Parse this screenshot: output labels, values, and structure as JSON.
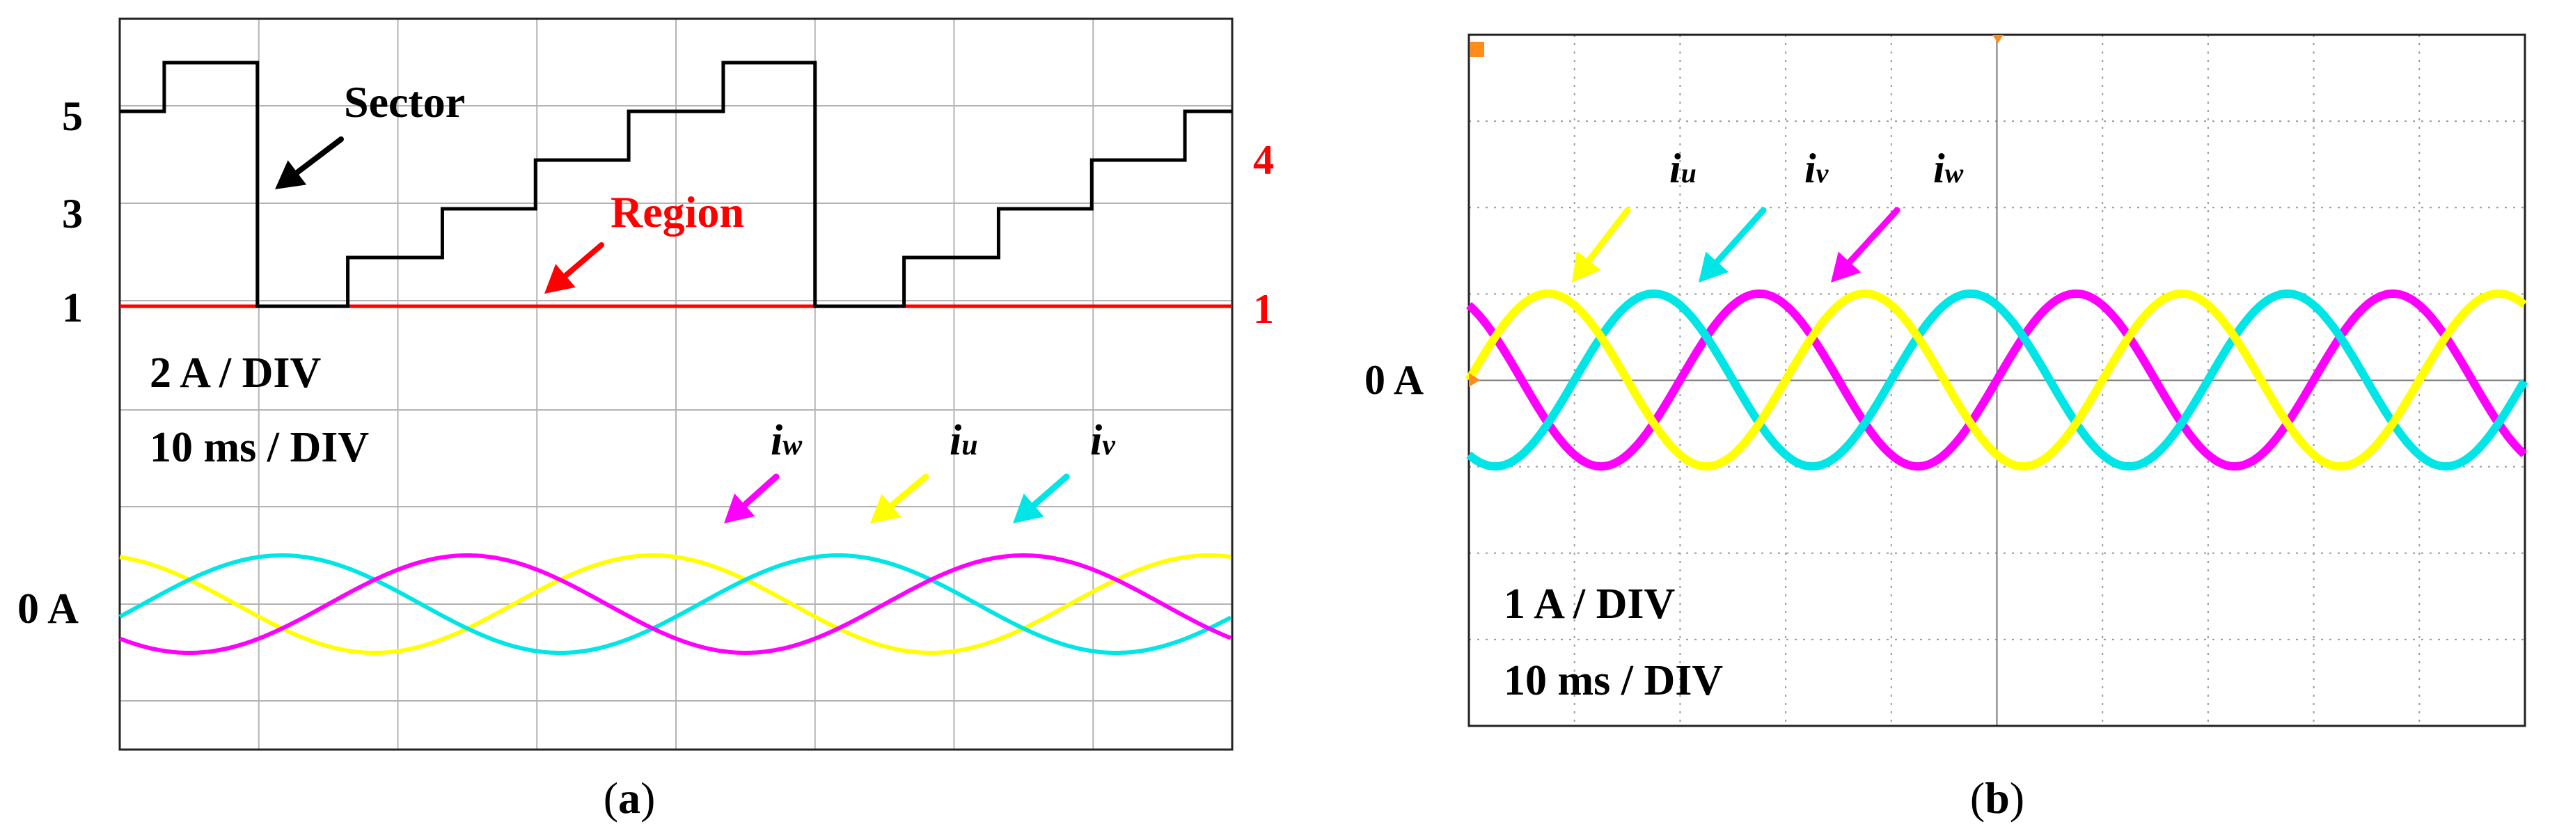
{
  "colors": {
    "sector": "#000000",
    "region": "#ff0000",
    "iu": "#ffff00",
    "iv": "#00e5e5",
    "iw": "#ff00ff",
    "grid": "#b4b4b4",
    "frame": "#222222",
    "scope_grid": "#9a9a9a"
  },
  "chart_data": [
    {
      "type": "line",
      "panel": "a",
      "caption": "(a)",
      "caption_letter": "a",
      "ytick_labels_left": [
        "5",
        "3",
        "1"
      ],
      "ytick_labels_right": [
        "4",
        "1"
      ],
      "settings": [
        "2 A / DIV",
        "10 ms / DIV"
      ],
      "zero_label": "0 A",
      "annotations": {
        "sector": "Sector",
        "region": "Region"
      },
      "current_labels": [
        {
          "key": "iw",
          "base": "i",
          "sub": "w"
        },
        {
          "key": "iu",
          "base": "i",
          "sub": "u"
        },
        {
          "key": "iv",
          "base": "i",
          "sub": "v"
        }
      ],
      "time_divisions": 8,
      "sector_levels": [
        1,
        2,
        3,
        4,
        5,
        6
      ],
      "sector_steps": [
        {
          "t": 0.0,
          "v": 5
        },
        {
          "t": 0.32,
          "v": 6
        },
        {
          "t": 0.99,
          "v": 1
        },
        {
          "t": 1.64,
          "v": 2
        },
        {
          "t": 2.32,
          "v": 3
        },
        {
          "t": 2.99,
          "v": 4
        },
        {
          "t": 3.66,
          "v": 5
        },
        {
          "t": 4.34,
          "v": 6
        },
        {
          "t": 5.0,
          "v": 1
        },
        {
          "t": 5.64,
          "v": 2
        },
        {
          "t": 6.32,
          "v": 3
        },
        {
          "t": 6.99,
          "v": 4
        },
        {
          "t": 7.66,
          "v": 5
        },
        {
          "t": 8.0,
          "v": 5
        }
      ],
      "region_value": 1,
      "current": {
        "amplitude_A": 1.0,
        "amplitude_div": 0.5,
        "period_div": 4.0,
        "phase_deg": {
          "iu": 105,
          "iv": -15,
          "iw": 225
        }
      }
    },
    {
      "type": "line",
      "panel": "b",
      "caption": "(b)",
      "caption_letter": "b",
      "settings": [
        "1 A / DIV",
        "10 ms / DIV"
      ],
      "zero_label": "0 A",
      "current_labels": [
        {
          "key": "iu",
          "base": "i",
          "sub": "u"
        },
        {
          "key": "iv",
          "base": "i",
          "sub": "v"
        },
        {
          "key": "iw",
          "base": "i",
          "sub": "w"
        }
      ],
      "time_divisions": 10,
      "voltage_divisions": 8,
      "current": {
        "amplitude_A": 1.0,
        "amplitude_div": 1.0,
        "period_div": 3.0,
        "phase_deg": {
          "iu": 0,
          "iv": -120,
          "iw": 120
        }
      }
    }
  ]
}
